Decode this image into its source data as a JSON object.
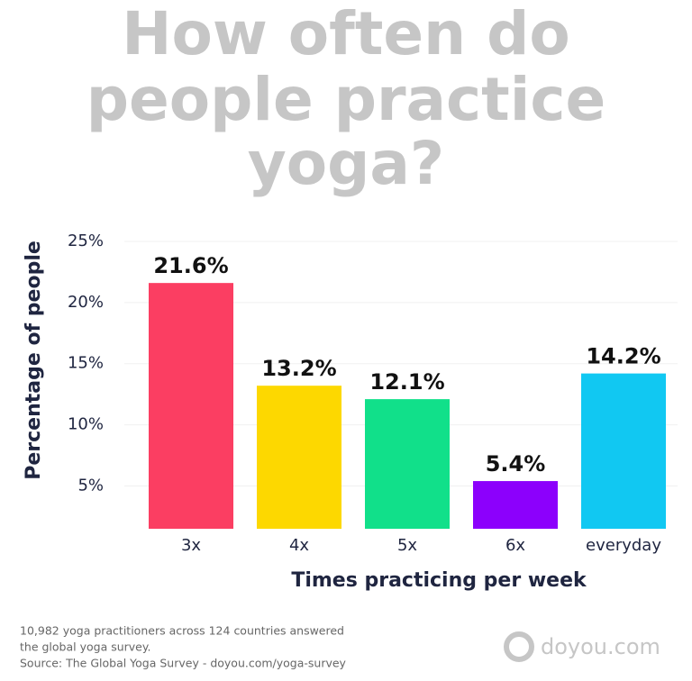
{
  "chart_data": {
    "type": "bar",
    "title": [
      "How often do",
      "people practice",
      "yoga?"
    ],
    "y_label": "Percentage of people",
    "x_label": "Times practicing per week",
    "categories": [
      "3x",
      "4x",
      "5x",
      "6x",
      "everyday"
    ],
    "values": [
      21.6,
      13.2,
      12.1,
      5.4,
      14.2
    ],
    "value_labels": [
      "21.6%",
      "13.2%",
      "12.1%",
      "5.4%",
      "14.2%"
    ],
    "colors": [
      "#fb3e62",
      "#fdd800",
      "#11e08a",
      "#8c00fc",
      "#11c8f2"
    ],
    "ylim": [
      1.5,
      25
    ],
    "yticks": [
      {
        "value": 5,
        "label": "5%"
      },
      {
        "value": 10,
        "label": "10%"
      },
      {
        "value": 15,
        "label": "15%"
      },
      {
        "value": 20,
        "label": "20%"
      },
      {
        "value": 25,
        "label": "25%"
      }
    ],
    "grid": true,
    "footnote": [
      "10,982 yoga practitioners across 124 countries answered",
      "the global yoga survey.",
      "Source: The Global Yoga Survey - doyou.com/yoga-survey"
    ],
    "logo": "doyou.com"
  }
}
